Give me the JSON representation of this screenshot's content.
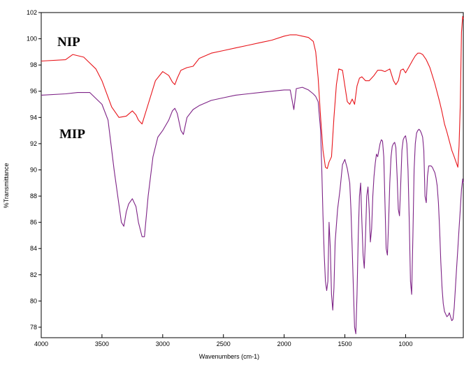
{
  "chart_data": {
    "type": "line",
    "title": "",
    "xlabel": "Wavenumbers (cm-1)",
    "ylabel": "%Transmittance",
    "xlim": [
      4000,
      525
    ],
    "ylim": [
      77.2,
      102
    ],
    "x_ticks": [
      4000,
      3500,
      3000,
      2500,
      2000,
      1500,
      1000
    ],
    "x_tick_labels": [
      "4000",
      "3500",
      "3000",
      "2500",
      "2000",
      "1500",
      "1000"
    ],
    "y_ticks": [
      78,
      80,
      82,
      84,
      86,
      88,
      90,
      92,
      94,
      96,
      98,
      100,
      102
    ],
    "y_tick_labels": [
      "78",
      "80",
      "82",
      "84",
      "86",
      "88",
      "90",
      "92",
      "94",
      "96",
      "98",
      "100",
      "102"
    ],
    "grid": false,
    "legend": "none",
    "series": [
      {
        "name": "NIP",
        "color": "#e8141a",
        "x": [
          4000,
          3800,
          3740,
          3650,
          3550,
          3500,
          3420,
          3360,
          3300,
          3250,
          3220,
          3200,
          3170,
          3120,
          3060,
          3000,
          2950,
          2920,
          2900,
          2880,
          2850,
          2800,
          2750,
          2700,
          2600,
          2500,
          2400,
          2300,
          2200,
          2100,
          2000,
          1950,
          1900,
          1850,
          1800,
          1760,
          1740,
          1720,
          1700,
          1680,
          1660,
          1645,
          1630,
          1610,
          1590,
          1570,
          1550,
          1520,
          1480,
          1460,
          1440,
          1420,
          1400,
          1380,
          1360,
          1330,
          1300,
          1260,
          1230,
          1200,
          1170,
          1150,
          1130,
          1100,
          1080,
          1060,
          1040,
          1020,
          1000,
          970,
          940,
          920,
          900,
          880,
          860,
          830,
          800,
          760,
          720,
          700,
          680,
          660,
          640,
          620,
          600,
          585,
          570,
          560,
          550,
          540,
          530,
          525
        ],
        "y": [
          98.3,
          98.4,
          98.8,
          98.6,
          97.7,
          96.8,
          94.8,
          94.0,
          94.1,
          94.5,
          94.2,
          93.8,
          93.5,
          95.0,
          96.8,
          97.5,
          97.2,
          96.7,
          96.5,
          97.0,
          97.6,
          97.8,
          97.9,
          98.5,
          98.9,
          99.1,
          99.3,
          99.5,
          99.7,
          99.9,
          100.2,
          100.3,
          100.3,
          100.2,
          100.1,
          99.8,
          99.0,
          97.0,
          94.0,
          91.5,
          90.2,
          90.1,
          90.6,
          91.0,
          94.0,
          96.5,
          97.7,
          97.6,
          95.2,
          95.0,
          95.4,
          95.0,
          96.4,
          97.0,
          97.1,
          96.8,
          96.8,
          97.2,
          97.6,
          97.6,
          97.5,
          97.6,
          97.7,
          96.8,
          96.5,
          96.8,
          97.6,
          97.7,
          97.4,
          97.9,
          98.4,
          98.7,
          98.9,
          98.9,
          98.8,
          98.4,
          97.8,
          96.6,
          95.2,
          94.4,
          93.5,
          92.9,
          92.2,
          91.5,
          91.0,
          90.6,
          90.2,
          91.8,
          95.0,
          100.5,
          101.7,
          101.5
        ]
      },
      {
        "name": "MIP",
        "color": "#7d2286",
        "x": [
          4000,
          3800,
          3700,
          3600,
          3500,
          3450,
          3400,
          3370,
          3340,
          3320,
          3300,
          3280,
          3250,
          3220,
          3200,
          3170,
          3150,
          3120,
          3080,
          3040,
          3000,
          2950,
          2920,
          2900,
          2880,
          2850,
          2830,
          2800,
          2750,
          2700,
          2600,
          2500,
          2400,
          2300,
          2200,
          2100,
          2000,
          1950,
          1920,
          1900,
          1850,
          1800,
          1760,
          1740,
          1720,
          1700,
          1690,
          1680,
          1670,
          1660,
          1650,
          1640,
          1630,
          1620,
          1610,
          1600,
          1590,
          1580,
          1560,
          1540,
          1520,
          1500,
          1480,
          1460,
          1450,
          1440,
          1430,
          1420,
          1410,
          1400,
          1390,
          1380,
          1370,
          1360,
          1350,
          1340,
          1330,
          1320,
          1310,
          1300,
          1290,
          1280,
          1270,
          1260,
          1250,
          1240,
          1230,
          1220,
          1210,
          1200,
          1190,
          1180,
          1170,
          1160,
          1150,
          1140,
          1130,
          1120,
          1110,
          1100,
          1090,
          1080,
          1070,
          1060,
          1050,
          1040,
          1030,
          1020,
          1010,
          1000,
          990,
          980,
          970,
          960,
          950,
          940,
          930,
          920,
          910,
          900,
          890,
          880,
          870,
          860,
          850,
          840,
          830,
          820,
          810,
          800,
          790,
          780,
          770,
          760,
          750,
          740,
          730,
          720,
          710,
          700,
          690,
          680,
          670,
          660,
          650,
          640,
          630,
          620,
          610,
          600,
          590,
          580,
          570,
          560,
          550,
          540,
          530,
          525
        ],
        "y": [
          95.7,
          95.8,
          95.9,
          95.9,
          95.0,
          93.8,
          90.0,
          88.0,
          86.0,
          85.7,
          86.8,
          87.4,
          87.8,
          87.2,
          86.0,
          84.9,
          84.9,
          88.0,
          91.0,
          92.5,
          93.0,
          93.8,
          94.5,
          94.7,
          94.3,
          93.0,
          92.7,
          94.0,
          94.6,
          94.9,
          95.3,
          95.5,
          95.7,
          95.8,
          95.9,
          96.0,
          96.1,
          96.1,
          94.6,
          96.2,
          96.3,
          96.1,
          95.8,
          95.6,
          95.2,
          93.0,
          90.0,
          86.5,
          83.5,
          81.5,
          80.8,
          81.5,
          86.0,
          84.0,
          80.5,
          79.3,
          81.0,
          84.5,
          87.0,
          88.5,
          90.4,
          90.8,
          90.1,
          89.0,
          87.0,
          84.0,
          81.0,
          78.0,
          77.5,
          80.5,
          85.0,
          88.0,
          89.0,
          86.0,
          83.5,
          82.5,
          85.0,
          88.0,
          88.7,
          87.0,
          84.5,
          85.5,
          88.0,
          89.5,
          90.5,
          91.2,
          91.0,
          91.5,
          92.0,
          92.3,
          92.2,
          91.0,
          87.5,
          84.0,
          83.5,
          86.0,
          89.0,
          91.0,
          91.8,
          92.0,
          92.1,
          91.7,
          89.5,
          87.0,
          86.5,
          89.0,
          91.5,
          92.3,
          92.5,
          92.6,
          92.0,
          90.0,
          86.0,
          81.5,
          80.5,
          85.0,
          90.0,
          92.0,
          92.8,
          93.0,
          93.1,
          93.0,
          92.8,
          92.5,
          91.5,
          88.0,
          87.5,
          89.5,
          90.3,
          90.3,
          90.3,
          90.2,
          90.0,
          89.8,
          89.4,
          88.8,
          87.5,
          85.5,
          83.0,
          81.0,
          79.8,
          79.2,
          79.0,
          78.8,
          78.9,
          79.1,
          78.8,
          78.5,
          78.6,
          79.5,
          81.0,
          82.5,
          84.0,
          85.5,
          87.0,
          88.5,
          89.3,
          89.0
        ]
      }
    ]
  }
}
